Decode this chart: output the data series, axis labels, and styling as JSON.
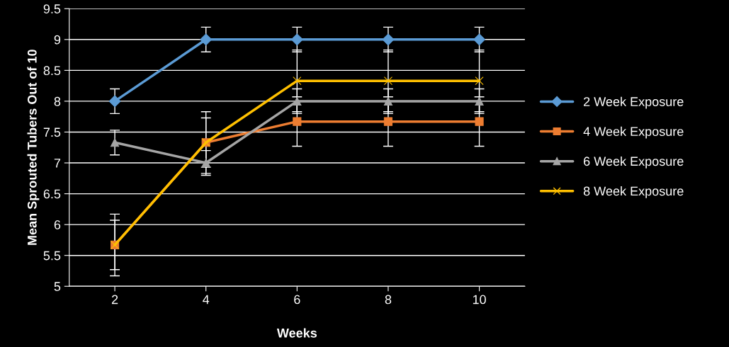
{
  "chart_data": {
    "type": "line",
    "xlabel": "Weeks",
    "ylabel": "Mean Sprouted Tubers Out of 10",
    "categories": [
      "2",
      "4",
      "6",
      "8",
      "10"
    ],
    "ylim": [
      5,
      9.5
    ],
    "yticks": [
      5,
      5.5,
      6,
      6.5,
      7,
      7.5,
      8,
      8.5,
      9,
      9.5
    ],
    "grid": "y",
    "legend": "right",
    "line_style": "solid",
    "series": [
      {
        "name": "2 Week Exposure",
        "color": "#5b9bd5",
        "marker": "diamond",
        "values": [
          8,
          9,
          9,
          9,
          9
        ],
        "errors": [
          0.2,
          0.2,
          0.2,
          0.2,
          0.2
        ]
      },
      {
        "name": "4 Week Exposure",
        "color": "#ed7d31",
        "marker": "square",
        "values": [
          5.67,
          7.33,
          7.67,
          7.67,
          7.67
        ],
        "errors": [
          0.4,
          0.4,
          0.4,
          0.4,
          0.4
        ]
      },
      {
        "name": "6 Week Exposure",
        "color": "#a5a5a5",
        "marker": "triangle",
        "values": [
          7.33,
          7,
          8,
          8,
          8
        ],
        "errors": [
          0.2,
          0.2,
          0.2,
          0.2,
          0.2
        ]
      },
      {
        "name": "8 Week Exposure",
        "color": "#ffc000",
        "marker": "cross",
        "values": [
          5.67,
          7.33,
          8.33,
          8.33,
          8.33
        ],
        "errors": [
          0.5,
          0.5,
          0.5,
          0.5,
          0.5
        ]
      }
    ]
  }
}
